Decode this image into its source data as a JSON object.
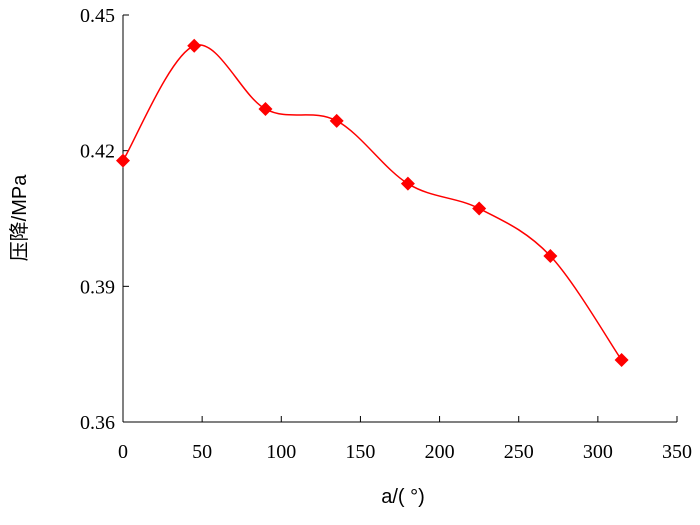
{
  "chart_data": {
    "type": "line",
    "xlabel": "a/( °)",
    "ylabel": "压降/MPa",
    "xlim": [
      0,
      350
    ],
    "ylim": [
      0.36,
      0.45
    ],
    "x_ticks": [
      0,
      50,
      100,
      150,
      200,
      250,
      300,
      350
    ],
    "y_ticks": [
      0.36,
      0.39,
      0.42,
      0.45
    ],
    "y_tick_labels": [
      "0.36",
      "0.39",
      "0.42",
      "0.45"
    ],
    "grid": false,
    "series": [
      {
        "color": "#ff0000",
        "marker": "diamond",
        "smooth": true,
        "x": [
          0,
          45,
          90,
          135,
          180,
          225,
          270,
          315
        ],
        "y": [
          0.4178,
          0.4432,
          0.4292,
          0.4266,
          0.4127,
          0.4072,
          0.3967,
          0.3737
        ]
      }
    ]
  }
}
